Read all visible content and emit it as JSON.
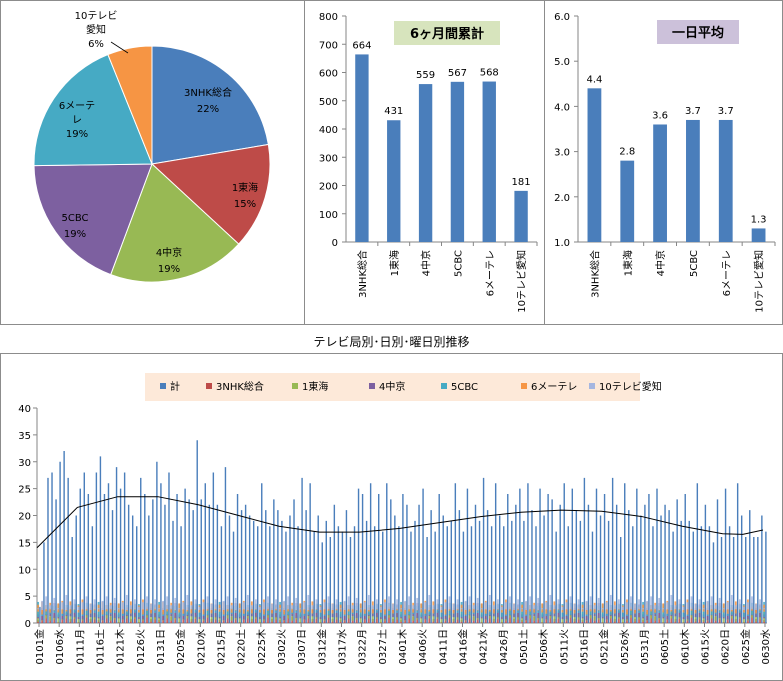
{
  "chart_data": [
    {
      "type": "pie",
      "labels": [
        "3NHK総合",
        "1東海",
        "4中京",
        "5CBC",
        "6メーテレ",
        "10テレビ愛知"
      ],
      "percent_labels": [
        "22%",
        "15%",
        "19%",
        "19%",
        "19%",
        "6%"
      ],
      "values": [
        664,
        431,
        559,
        567,
        568,
        181
      ],
      "colors": [
        "#4a7ebb",
        "#be4b48",
        "#98b954",
        "#7d60a0",
        "#46aac4",
        "#f69544"
      ]
    },
    {
      "type": "bar",
      "title": "6ヶ月間累計",
      "categories": [
        "3NHK総合",
        "1東海",
        "4中京",
        "5CBC",
        "6メーテレ",
        "10テレビ愛知"
      ],
      "values": [
        664,
        431,
        559,
        567,
        568,
        181
      ],
      "value_labels": [
        "664",
        "431",
        "559",
        "567",
        "568",
        "181"
      ],
      "y_ticks": [
        "0",
        "100",
        "200",
        "300",
        "400",
        "500",
        "600",
        "700",
        "800"
      ],
      "ylim": [
        0,
        800
      ],
      "color": "#4a7ebb"
    },
    {
      "type": "bar",
      "title": "一日平均",
      "categories": [
        "3NHK総合",
        "1東海",
        "4中京",
        "5CBC",
        "6メーテレ",
        "10テレビ愛知"
      ],
      "values": [
        4.4,
        2.8,
        3.6,
        3.7,
        3.7,
        1.3
      ],
      "value_labels": [
        "4.4",
        "2.8",
        "3.6",
        "3.7",
        "3.7",
        "1.3"
      ],
      "y_ticks": [
        "1.0",
        "2.0",
        "3.0",
        "4.0",
        "5.0",
        "6.0"
      ],
      "ylim": [
        1,
        6
      ],
      "color": "#4a7ebb"
    },
    {
      "type": "bar",
      "title": "テレビ局別･日別･曜日別推移",
      "legend": [
        "計",
        "3NHK総合",
        "1東海",
        "4中京",
        "5CBC",
        "6メーテレ",
        "10テレビ愛知"
      ],
      "legend_colors": [
        "#4a7ebb",
        "#be4b48",
        "#98b954",
        "#7d60a0",
        "#46aac4",
        "#f69544",
        "#a5b6e0"
      ],
      "y_ticks": [
        "0",
        "5",
        "10",
        "15",
        "20",
        "25",
        "30",
        "35",
        "40"
      ],
      "ylim": [
        0,
        40
      ],
      "x_tick_labels": [
        "0101金",
        "0106水",
        "0111月",
        "0116土",
        "0121木",
        "0126火",
        "0131日",
        "0205金",
        "0210水",
        "0215月",
        "0220土",
        "0225木",
        "0302火",
        "0307日",
        "0312金",
        "0317水",
        "0322月",
        "0327土",
        "0401木",
        "0406火",
        "0411日",
        "0416金",
        "0421水",
        "0426月",
        "0501土",
        "0506木",
        "0511火",
        "0516日",
        "0521金",
        "0526水",
        "0531月",
        "0605土",
        "0610木",
        "0615火",
        "0620日",
        "0625金",
        "0630水"
      ],
      "day_count": 181,
      "trend": [
        {
          "day": 0,
          "value": 14
        },
        {
          "day": 10,
          "value": 21.5
        },
        {
          "day": 20,
          "value": 23.5
        },
        {
          "day": 30,
          "value": 23.5
        },
        {
          "day": 40,
          "value": 22
        },
        {
          "day": 50,
          "value": 20
        },
        {
          "day": 60,
          "value": 18
        },
        {
          "day": 70,
          "value": 16.9
        },
        {
          "day": 80,
          "value": 16.9
        },
        {
          "day": 90,
          "value": 17.6
        },
        {
          "day": 100,
          "value": 18.7
        },
        {
          "day": 110,
          "value": 19.8
        },
        {
          "day": 120,
          "value": 20.6
        },
        {
          "day": 130,
          "value": 21
        },
        {
          "day": 140,
          "value": 20.8
        },
        {
          "day": 150,
          "value": 19.8
        },
        {
          "day": 160,
          "value": 18
        },
        {
          "day": 170,
          "value": 16.6
        },
        {
          "day": 175,
          "value": 16.5
        },
        {
          "day": 180,
          "value": 17.3
        }
      ],
      "totals": [
        3,
        15,
        27,
        28,
        23,
        30,
        32,
        27,
        16,
        20,
        25,
        28,
        24,
        18,
        28,
        31,
        24,
        26,
        21,
        29,
        25,
        28,
        22,
        20,
        18,
        27,
        24,
        20,
        23,
        30,
        26,
        22,
        28,
        19,
        24,
        18,
        25,
        23,
        21,
        34,
        23,
        26,
        22,
        28,
        22,
        18,
        29,
        20,
        17,
        24,
        21,
        22,
        20,
        19,
        18,
        26,
        21,
        18,
        23,
        21,
        19,
        17,
        20,
        23,
        18,
        27,
        21,
        26,
        17,
        20,
        15,
        19,
        16,
        22,
        18,
        17,
        21,
        16,
        18,
        25,
        24,
        19,
        26,
        18,
        24,
        17,
        26,
        23,
        20,
        18,
        24,
        22,
        17,
        19,
        22,
        25,
        16,
        21,
        17,
        24,
        20,
        18,
        19,
        26,
        21,
        17,
        25,
        18,
        22,
        19,
        27,
        21,
        18,
        26,
        20,
        18,
        24,
        19,
        22,
        25,
        19,
        26,
        21,
        18,
        25,
        20,
        24,
        23,
        17,
        22,
        26,
        18,
        25,
        21,
        19,
        27,
        22,
        17,
        25,
        20,
        24,
        19,
        27,
        22,
        16,
        26,
        21,
        18,
        25,
        20,
        22,
        24,
        18,
        25,
        20,
        22,
        21,
        17,
        23,
        19,
        24,
        19,
        17,
        26,
        18,
        22,
        18,
        15,
        23,
        16,
        25,
        18,
        16,
        26,
        20,
        16,
        21,
        16,
        16,
        20,
        17
      ]
    }
  ]
}
